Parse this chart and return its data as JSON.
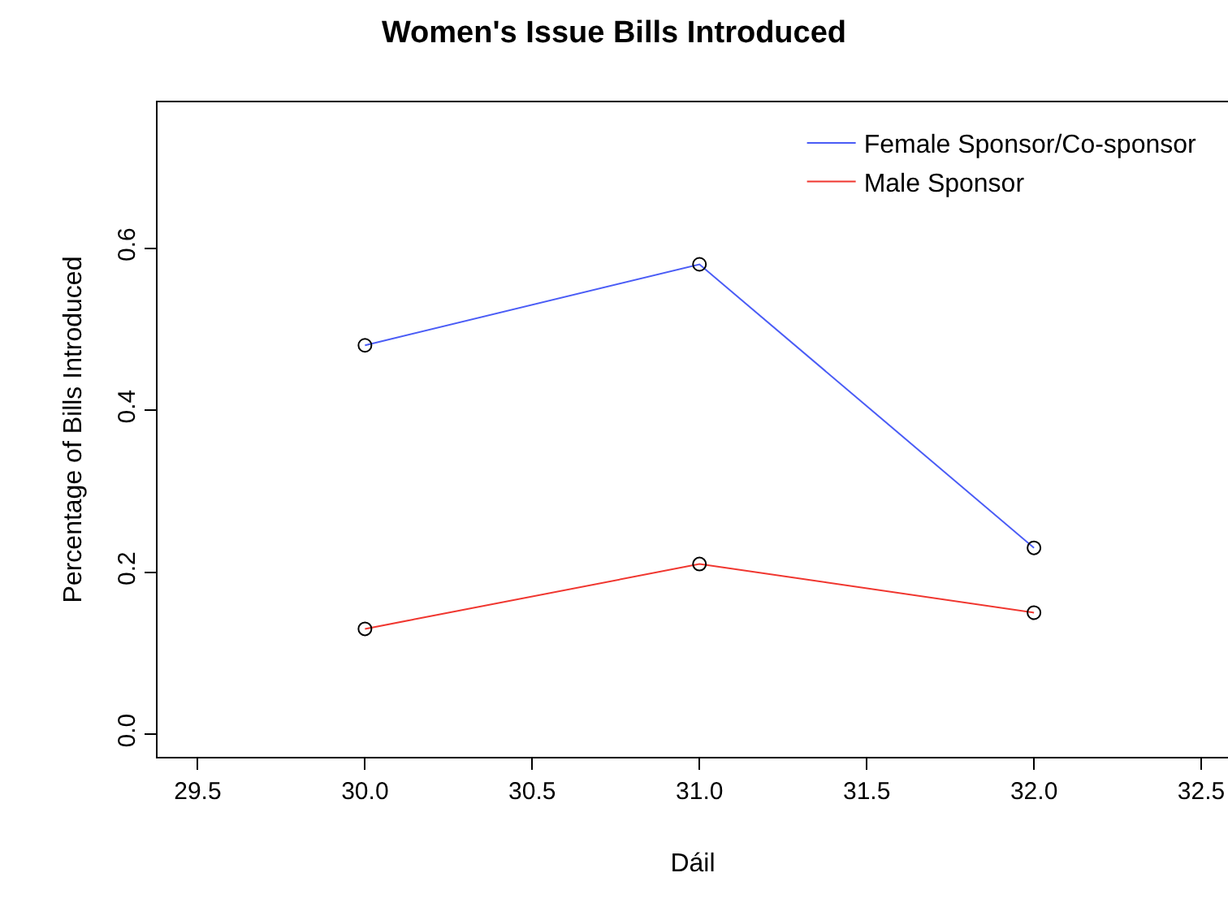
{
  "chart_data": {
    "type": "line",
    "title": "Women's Issue Bills Introduced",
    "xlabel": "Dáil",
    "ylabel": "Percentage of Bills Introduced",
    "x": [
      30.0,
      31.0,
      32.0
    ],
    "series": [
      {
        "name": "Female Sponsor/Co-sponsor",
        "color": "#4a5cf6",
        "values": [
          0.48,
          0.58,
          0.23
        ]
      },
      {
        "name": "Male Sponsor",
        "color": "#f0362f",
        "values": [
          0.13,
          0.21,
          0.15
        ]
      }
    ],
    "xlim": [
      29.38,
      32.58
    ],
    "xticks": [
      {
        "value": 29.5,
        "label": "29.5"
      },
      {
        "value": 30.0,
        "label": "30.0"
      },
      {
        "value": 30.5,
        "label": "30.5"
      },
      {
        "value": 31.0,
        "label": "31.0"
      },
      {
        "value": 31.5,
        "label": "31.5"
      },
      {
        "value": 32.0,
        "label": "32.0"
      },
      {
        "value": 32.5,
        "label": "32.5"
      }
    ],
    "ylim": [
      -0.028,
      0.78
    ],
    "yticks": [
      {
        "value": 0.0,
        "label": "0.0"
      },
      {
        "value": 0.2,
        "label": "0.2"
      },
      {
        "value": 0.4,
        "label": "0.4"
      },
      {
        "value": 0.6,
        "label": "0.6"
      }
    ],
    "marker": "circle",
    "line_style": "solid",
    "legend": "top right"
  }
}
